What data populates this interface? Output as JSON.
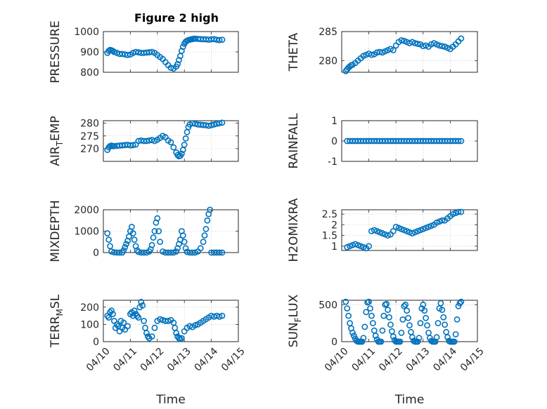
{
  "figure": {
    "title": "Figure 2 high",
    "marker_color": "#0072BD"
  },
  "chart_data": [
    {
      "id": "pressure",
      "type": "scatter",
      "ylabel": "PRESSURE",
      "ylim": [
        800,
        1000
      ],
      "yticks": [
        800,
        900,
        1000
      ],
      "xlim": [
        0,
        5
      ],
      "x": [
        0.15,
        0.2,
        0.25,
        0.3,
        0.35,
        0.4,
        0.5,
        0.6,
        0.7,
        0.8,
        0.9,
        1.0,
        1.1,
        1.2,
        1.3,
        1.4,
        1.5,
        1.6,
        1.7,
        1.8,
        1.9,
        2.0,
        2.1,
        2.2,
        2.3,
        2.4,
        2.5,
        2.6,
        2.7,
        2.75,
        2.8,
        2.85,
        2.9,
        2.95,
        3.0,
        3.05,
        3.1,
        3.15,
        3.2,
        3.25,
        3.3,
        3.35,
        3.4,
        3.5,
        3.6,
        3.7,
        3.8,
        3.9,
        4.0,
        4.1,
        4.2,
        4.3,
        4.4
      ],
      "y": [
        895,
        905,
        910,
        908,
        905,
        900,
        895,
        890,
        890,
        888,
        885,
        887,
        895,
        900,
        898,
        895,
        895,
        897,
        898,
        900,
        895,
        885,
        875,
        865,
        850,
        835,
        822,
        818,
        828,
        840,
        860,
        880,
        905,
        925,
        940,
        950,
        955,
        958,
        960,
        962,
        963,
        965,
        965,
        964,
        963,
        962,
        962,
        960,
        962,
        963,
        960,
        958,
        960
      ]
    },
    {
      "id": "theta",
      "type": "scatter",
      "ylabel": "THETA",
      "ylim": [
        278,
        285
      ],
      "yticks": [
        280,
        285
      ],
      "xlim": [
        0,
        5
      ],
      "x": [
        0.15,
        0.2,
        0.25,
        0.3,
        0.35,
        0.4,
        0.5,
        0.6,
        0.7,
        0.8,
        0.9,
        1.0,
        1.1,
        1.2,
        1.3,
        1.4,
        1.5,
        1.6,
        1.7,
        1.8,
        1.9,
        2.0,
        2.1,
        2.2,
        2.3,
        2.4,
        2.5,
        2.6,
        2.7,
        2.8,
        2.9,
        3.0,
        3.1,
        3.2,
        3.3,
        3.4,
        3.5,
        3.6,
        3.7,
        3.8,
        3.9,
        4.0,
        4.1,
        4.2,
        4.3,
        4.4
      ],
      "y": [
        278.2,
        278.5,
        278.8,
        279.0,
        279.2,
        279.3,
        279.6,
        280.0,
        280.4,
        280.8,
        281.0,
        281.2,
        281.0,
        281.1,
        281.4,
        281.5,
        281.4,
        281.6,
        281.8,
        282.0,
        281.8,
        282.6,
        283.2,
        283.5,
        283.4,
        283.2,
        283.0,
        283.2,
        283.0,
        282.9,
        282.8,
        282.5,
        282.6,
        282.4,
        282.8,
        283.0,
        282.8,
        282.6,
        282.5,
        282.4,
        282.2,
        282.0,
        282.4,
        282.8,
        283.3,
        283.8
      ]
    },
    {
      "id": "airtemp",
      "type": "scatter",
      "ylabel": "AIR",
      "ylabel_sub": "T",
      "ylabel_rest": "EMP",
      "ylim": [
        265,
        281
      ],
      "yticks": [
        270,
        275,
        280
      ],
      "xlim": [
        0,
        5
      ],
      "x": [
        0.15,
        0.2,
        0.25,
        0.3,
        0.35,
        0.4,
        0.5,
        0.6,
        0.7,
        0.8,
        0.9,
        1.0,
        1.1,
        1.2,
        1.3,
        1.4,
        1.5,
        1.6,
        1.7,
        1.8,
        1.9,
        2.0,
        2.1,
        2.2,
        2.3,
        2.4,
        2.5,
        2.6,
        2.7,
        2.75,
        2.8,
        2.85,
        2.9,
        2.95,
        3.0,
        3.05,
        3.1,
        3.15,
        3.2,
        3.3,
        3.4,
        3.5,
        3.6,
        3.7,
        3.8,
        3.9,
        4.0,
        4.1,
        4.2,
        4.3,
        4.4
      ],
      "y": [
        269.5,
        270.5,
        271.0,
        271.2,
        271.0,
        271.0,
        271.1,
        271.2,
        271.3,
        271.4,
        271.5,
        271.3,
        271.4,
        271.6,
        273.0,
        273.2,
        273.0,
        273.0,
        273.2,
        273.4,
        273.0,
        273.5,
        274.2,
        275.0,
        274.5,
        273.2,
        272.5,
        270.5,
        268.5,
        267.5,
        267.0,
        267.2,
        268.0,
        269.5,
        271.5,
        274.0,
        276.5,
        278.5,
        279.5,
        280.0,
        279.8,
        279.5,
        279.4,
        279.3,
        279.2,
        279.0,
        279.2,
        279.5,
        279.8,
        280.0,
        280.2
      ]
    },
    {
      "id": "rainfall",
      "type": "scatter",
      "ylabel": "RAINFALL",
      "ylim": [
        -1,
        1
      ],
      "yticks": [
        -1,
        0,
        1
      ],
      "xlim": [
        0,
        5
      ],
      "x": [
        0.2,
        0.3,
        0.4,
        0.5,
        0.6,
        0.7,
        0.8,
        0.9,
        1.0,
        1.1,
        1.2,
        1.3,
        1.4,
        1.5,
        1.6,
        1.7,
        1.8,
        1.9,
        2.0,
        2.1,
        2.2,
        2.3,
        2.4,
        2.5,
        2.6,
        2.7,
        2.8,
        2.9,
        3.0,
        3.1,
        3.2,
        3.3,
        3.4,
        3.5,
        3.6,
        3.7,
        3.8,
        3.9,
        4.0,
        4.1,
        4.2,
        4.3,
        4.4
      ],
      "y": [
        0,
        0,
        0,
        0,
        0,
        0,
        0,
        0,
        0,
        0,
        0,
        0,
        0,
        0,
        0,
        0,
        0,
        0,
        0,
        0,
        0,
        0,
        0,
        0,
        0,
        0,
        0,
        0,
        0,
        0,
        0,
        0,
        0,
        0,
        0,
        0,
        0,
        0,
        0,
        0,
        0,
        0,
        0
      ]
    },
    {
      "id": "mixdepth",
      "type": "scatter",
      "ylabel": "MIXDEPTH",
      "ylim": [
        0,
        2000
      ],
      "yticks": [
        0,
        1000,
        2000
      ],
      "xlim": [
        0,
        5
      ],
      "x": [
        0.15,
        0.2,
        0.25,
        0.3,
        0.4,
        0.5,
        0.6,
        0.7,
        0.75,
        0.8,
        0.85,
        0.9,
        0.95,
        1.0,
        1.05,
        1.1,
        1.15,
        1.2,
        1.25,
        1.3,
        1.4,
        1.5,
        1.6,
        1.7,
        1.75,
        1.8,
        1.85,
        1.9,
        1.95,
        2.0,
        2.05,
        2.1,
        2.2,
        2.3,
        2.4,
        2.5,
        2.6,
        2.7,
        2.75,
        2.8,
        2.85,
        2.9,
        2.95,
        3.0,
        3.05,
        3.1,
        3.2,
        3.3,
        3.4,
        3.5,
        3.6,
        3.7,
        3.75,
        3.8,
        3.85,
        3.9,
        3.95,
        4.0,
        4.1,
        4.2,
        4.3,
        4.4
      ],
      "y": [
        900,
        600,
        300,
        50,
        10,
        0,
        0,
        0,
        100,
        250,
        400,
        550,
        750,
        1000,
        1200,
        900,
        600,
        300,
        100,
        30,
        0,
        0,
        0,
        50,
        150,
        350,
        700,
        1000,
        1400,
        1600,
        1000,
        500,
        50,
        0,
        0,
        0,
        0,
        50,
        200,
        400,
        600,
        1000,
        800,
        500,
        200,
        30,
        0,
        0,
        0,
        50,
        200,
        500,
        800,
        1100,
        1500,
        1800,
        2000,
        0,
        0,
        0,
        0,
        0
      ]
    },
    {
      "id": "h2omixra",
      "type": "scatter",
      "ylabel": "H2OMIXRA",
      "ylim": [
        0.8,
        2.7
      ],
      "yticks": [
        1,
        1.5,
        2,
        2.5
      ],
      "xlim": [
        0,
        5
      ],
      "x": [
        0.2,
        0.3,
        0.4,
        0.5,
        0.6,
        0.7,
        0.8,
        0.9,
        1.0,
        1.1,
        1.2,
        1.3,
        1.4,
        1.5,
        1.6,
        1.7,
        1.8,
        1.9,
        2.0,
        2.1,
        2.2,
        2.3,
        2.4,
        2.5,
        2.6,
        2.7,
        2.8,
        2.9,
        3.0,
        3.1,
        3.2,
        3.3,
        3.4,
        3.5,
        3.6,
        3.7,
        3.8,
        3.9,
        4.0,
        4.1,
        4.2,
        4.3,
        4.4
      ],
      "y": [
        0.95,
        1.0,
        1.05,
        1.1,
        1.05,
        1.0,
        0.95,
        0.9,
        1.0,
        1.7,
        1.75,
        1.7,
        1.65,
        1.6,
        1.55,
        1.5,
        1.55,
        1.7,
        1.9,
        1.85,
        1.8,
        1.75,
        1.7,
        1.65,
        1.6,
        1.65,
        1.7,
        1.75,
        1.8,
        1.85,
        1.9,
        1.95,
        2.0,
        2.1,
        2.15,
        2.2,
        2.2,
        2.3,
        2.4,
        2.5,
        2.55,
        2.6,
        2.6
      ]
    },
    {
      "id": "terrmsl",
      "type": "scatter",
      "ylabel": "TERR",
      "ylabel_sub": "M",
      "ylabel_rest": "SL",
      "ylim": [
        0,
        240
      ],
      "yticks": [
        0,
        100,
        200
      ],
      "xlim": [
        0,
        5
      ],
      "xticklabels": [
        "04/10",
        "04/11",
        "04/12",
        "04/13",
        "04/14",
        "04/15"
      ],
      "xlabel": "Time",
      "x": [
        0.15,
        0.2,
        0.25,
        0.3,
        0.35,
        0.4,
        0.45,
        0.5,
        0.55,
        0.6,
        0.65,
        0.7,
        0.75,
        0.8,
        0.9,
        1.0,
        1.05,
        1.1,
        1.15,
        1.2,
        1.25,
        1.3,
        1.35,
        1.4,
        1.45,
        1.5,
        1.55,
        1.6,
        1.65,
        1.7,
        1.8,
        1.9,
        2.0,
        2.1,
        2.2,
        2.3,
        2.4,
        2.5,
        2.6,
        2.65,
        2.7,
        2.75,
        2.8,
        2.85,
        2.9,
        3.0,
        3.1,
        3.2,
        3.3,
        3.4,
        3.5,
        3.6,
        3.7,
        3.8,
        3.9,
        4.0,
        4.1,
        4.2,
        4.3,
        4.4
      ],
      "y": [
        150,
        140,
        170,
        180,
        160,
        120,
        80,
        100,
        90,
        60,
        120,
        80,
        110,
        70,
        90,
        160,
        170,
        150,
        180,
        160,
        150,
        140,
        200,
        230,
        210,
        120,
        80,
        50,
        30,
        20,
        30,
        80,
        120,
        130,
        125,
        120,
        120,
        125,
        110,
        80,
        50,
        30,
        20,
        15,
        20,
        60,
        80,
        90,
        85,
        95,
        100,
        110,
        120,
        130,
        140,
        150,
        145,
        150,
        145,
        150
      ]
    },
    {
      "id": "sunflux",
      "type": "scatter",
      "ylabel": "SUN",
      "ylabel_sub": "F",
      "ylabel_rest": "LUX",
      "ylim": [
        0,
        560
      ],
      "yticks": [
        0,
        500
      ],
      "xlim": [
        0,
        5
      ],
      "xticklabels": [
        "04/10",
        "04/11",
        "04/12",
        "04/13",
        "04/14",
        "04/15"
      ],
      "xlabel": "Time",
      "x": [
        0.15,
        0.2,
        0.25,
        0.3,
        0.35,
        0.4,
        0.45,
        0.5,
        0.55,
        0.6,
        0.65,
        0.7,
        0.75,
        0.8,
        0.85,
        0.9,
        0.95,
        1.0,
        1.05,
        1.1,
        1.15,
        1.2,
        1.25,
        1.3,
        1.35,
        1.4,
        1.45,
        1.5,
        1.55,
        1.6,
        1.65,
        1.7,
        1.75,
        1.8,
        1.85,
        1.9,
        1.95,
        2.0,
        2.05,
        2.1,
        2.15,
        2.2,
        2.25,
        2.3,
        2.35,
        2.4,
        2.45,
        2.5,
        2.55,
        2.6,
        2.65,
        2.7,
        2.75,
        2.8,
        2.85,
        2.9,
        2.95,
        3.0,
        3.05,
        3.1,
        3.15,
        3.2,
        3.25,
        3.3,
        3.35,
        3.4,
        3.45,
        3.5,
        3.55,
        3.6,
        3.65,
        3.7,
        3.75,
        3.8,
        3.85,
        3.9,
        3.95,
        4.0,
        4.05,
        4.1,
        4.15,
        4.2,
        4.25,
        4.3,
        4.35,
        4.4
      ],
      "y": [
        540,
        450,
        350,
        250,
        180,
        120,
        80,
        40,
        10,
        0,
        0,
        0,
        0,
        50,
        200,
        400,
        530,
        540,
        450,
        350,
        250,
        150,
        80,
        30,
        0,
        0,
        0,
        150,
        350,
        500,
        510,
        430,
        330,
        230,
        140,
        70,
        20,
        0,
        0,
        0,
        0,
        120,
        300,
        480,
        500,
        420,
        320,
        220,
        130,
        60,
        10,
        0,
        0,
        0,
        50,
        250,
        450,
        500,
        420,
        320,
        220,
        120,
        50,
        10,
        0,
        0,
        0,
        60,
        250,
        450,
        520,
        430,
        330,
        230,
        130,
        60,
        10,
        0,
        0,
        0,
        0,
        100,
        300,
        480,
        520,
        540
      ]
    }
  ]
}
